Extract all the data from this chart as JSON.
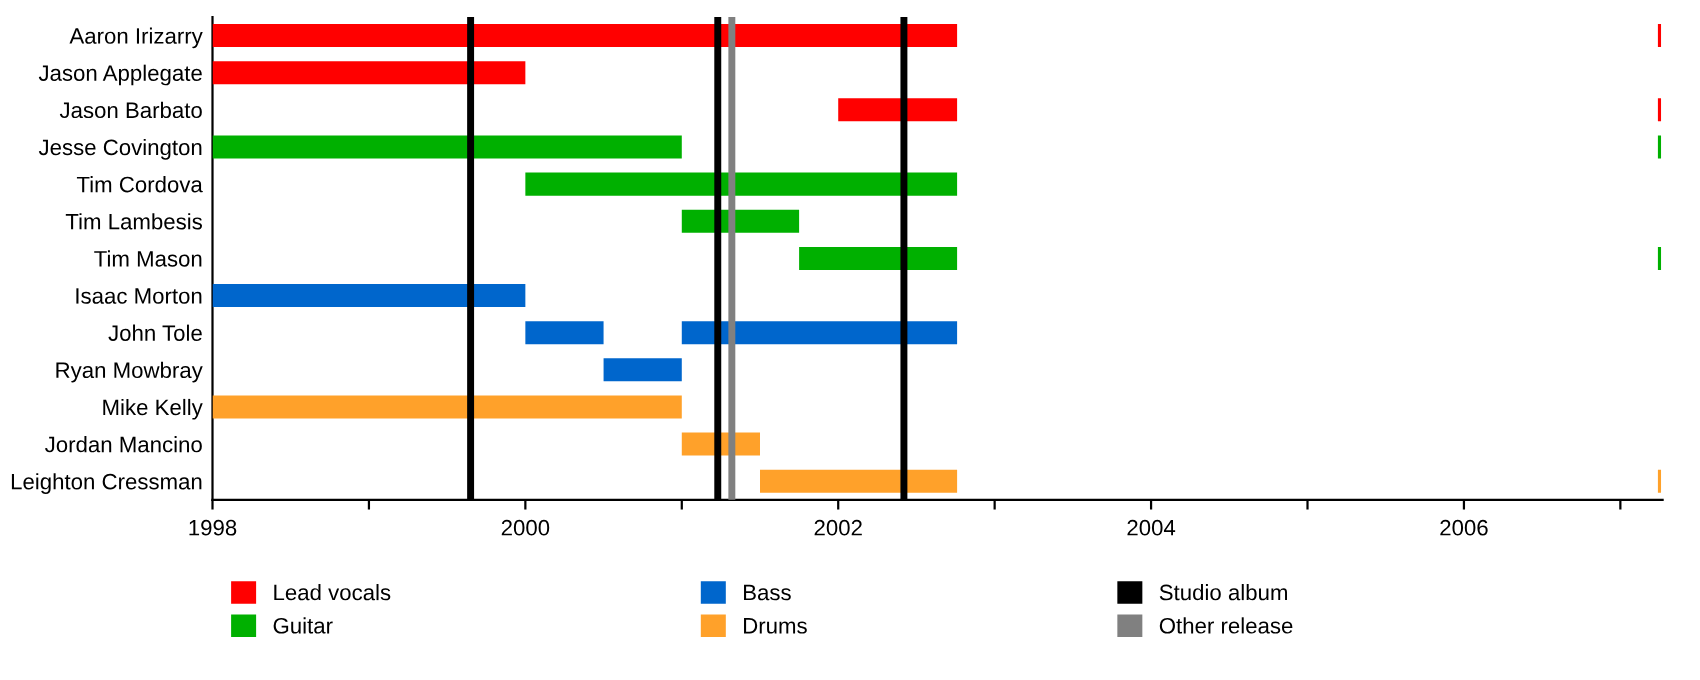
{
  "chart_data": {
    "type": "bar",
    "orientation": "horizontal",
    "categories": [
      "Aaron Irizarry",
      "Jason Applegate",
      "Jason Barbato",
      "Jesse Covington",
      "Tim Cordova",
      "Tim Lambesis",
      "Tim Mason",
      "Isaac Morton",
      "John Tole",
      "Ryan Mowbray",
      "Mike Kelly",
      "Jordan Mancino",
      "Leighton Cressman"
    ],
    "series": [
      {
        "name": "Lead vocals",
        "color": "#ff0000",
        "base": [
          1998,
          1998,
          2002.0,
          null,
          null,
          null,
          null,
          null,
          null,
          null,
          null,
          null,
          null
        ],
        "values": [
          4.76,
          2.0,
          0.76,
          null,
          null,
          null,
          null,
          null,
          null,
          null,
          null,
          null,
          null
        ]
      },
      {
        "name": "Guitar",
        "color": "#00b000",
        "base": [
          null,
          null,
          null,
          1998,
          2000.0,
          2001.0,
          2001.75,
          null,
          null,
          null,
          null,
          null,
          null
        ],
        "values": [
          null,
          null,
          null,
          3.0,
          2.76,
          0.75,
          1.01,
          null,
          null,
          null,
          null,
          null,
          null
        ]
      },
      {
        "name": "Bass",
        "color": "#0066cc",
        "base": [
          null,
          null,
          null,
          null,
          null,
          null,
          null,
          1998,
          2000.0,
          2000.5,
          null,
          null,
          null
        ],
        "values": [
          null,
          null,
          null,
          null,
          null,
          null,
          null,
          2.0,
          0.5,
          0.5,
          null,
          null,
          null
        ]
      },
      {
        "name": "Drums",
        "color": "#ffa12a",
        "base": [
          null,
          null,
          null,
          null,
          null,
          null,
          null,
          null,
          null,
          null,
          1998,
          2001.0,
          2001.5
        ],
        "values": [
          null,
          null,
          null,
          null,
          null,
          null,
          null,
          null,
          null,
          null,
          3.0,
          0.5,
          1.26
        ]
      },
      {
        "color": "#0066cc",
        "base": [
          null,
          null,
          null,
          null,
          null,
          null,
          null,
          null,
          2001.0,
          null,
          null,
          null,
          null
        ],
        "values": [
          null,
          null,
          null,
          null,
          null,
          null,
          null,
          null,
          1.76,
          null,
          null,
          null,
          null
        ]
      },
      {
        "color": "#ff0000",
        "base": [
          2007.24,
          null,
          2007.24,
          null,
          null,
          null,
          null,
          null,
          null,
          null,
          null,
          null,
          null
        ],
        "values": [
          0.02,
          null,
          0.02,
          null,
          null,
          null,
          null,
          null,
          null,
          null,
          null,
          null,
          null
        ]
      },
      {
        "color": "#00b000",
        "base": [
          null,
          null,
          null,
          2007.24,
          null,
          null,
          2007.24,
          null,
          null,
          null,
          null,
          null,
          null
        ],
        "values": [
          null,
          null,
          null,
          0.02,
          null,
          null,
          0.02,
          null,
          null,
          null,
          null,
          null,
          null
        ]
      },
      {
        "color": "#ffa12a",
        "base": [
          null,
          null,
          null,
          null,
          null,
          null,
          null,
          null,
          null,
          null,
          null,
          null,
          2007.24
        ],
        "values": [
          null,
          null,
          null,
          null,
          null,
          null,
          null,
          null,
          null,
          null,
          null,
          null,
          0.02
        ]
      }
    ],
    "xlim": [
      1998,
      2007.27
    ],
    "xticks": [
      1998,
      {
        "value": 1999,
        "label": null
      },
      2000,
      {
        "value": 2001,
        "label": null
      },
      2002,
      {
        "value": 2003,
        "label": null
      },
      2004,
      {
        "value": 2005,
        "label": null
      },
      2006,
      {
        "value": 2007,
        "label": null
      }
    ],
    "ref_lines": [
      {
        "axis": "x",
        "value": 1999.65,
        "label": "Studio album",
        "color": "#000000"
      },
      {
        "axis": "x",
        "value": 2001.23,
        "color": "#000000"
      },
      {
        "axis": "x",
        "value": 2002.42,
        "color": "#000000"
      },
      {
        "axis": "x",
        "value": 2001.32,
        "label": "Other release",
        "color": "#808080"
      }
    ],
    "legend": "bottom",
    "grid": false
  }
}
